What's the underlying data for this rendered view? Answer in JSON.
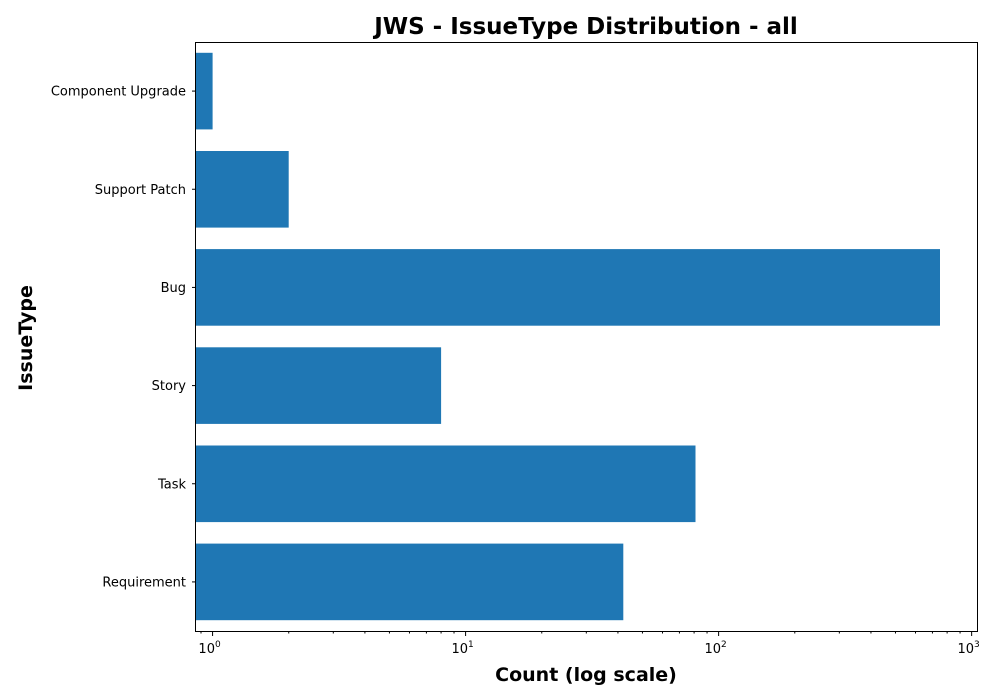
{
  "chart_data": {
    "type": "bar",
    "orientation": "horizontal",
    "title": "JWS - IssueType Distribution - all",
    "xlabel": "Count (log scale)",
    "ylabel": "IssueType",
    "xscale": "log",
    "xlim": [
      0.86,
      1050
    ],
    "x_ticks": [
      {
        "value": 1,
        "base": "10",
        "exp": "0"
      },
      {
        "value": 10,
        "base": "10",
        "exp": "1"
      },
      {
        "value": 100,
        "base": "10",
        "exp": "2"
      },
      {
        "value": 1000,
        "base": "10",
        "exp": "3"
      }
    ],
    "categories": [
      "Component Upgrade",
      "Support Patch",
      "Bug",
      "Story",
      "Task",
      "Requirement"
    ],
    "values": [
      1,
      2,
      750,
      8,
      81,
      42
    ],
    "bar_color": "#1f77b4",
    "grid": false,
    "legend": "none"
  }
}
